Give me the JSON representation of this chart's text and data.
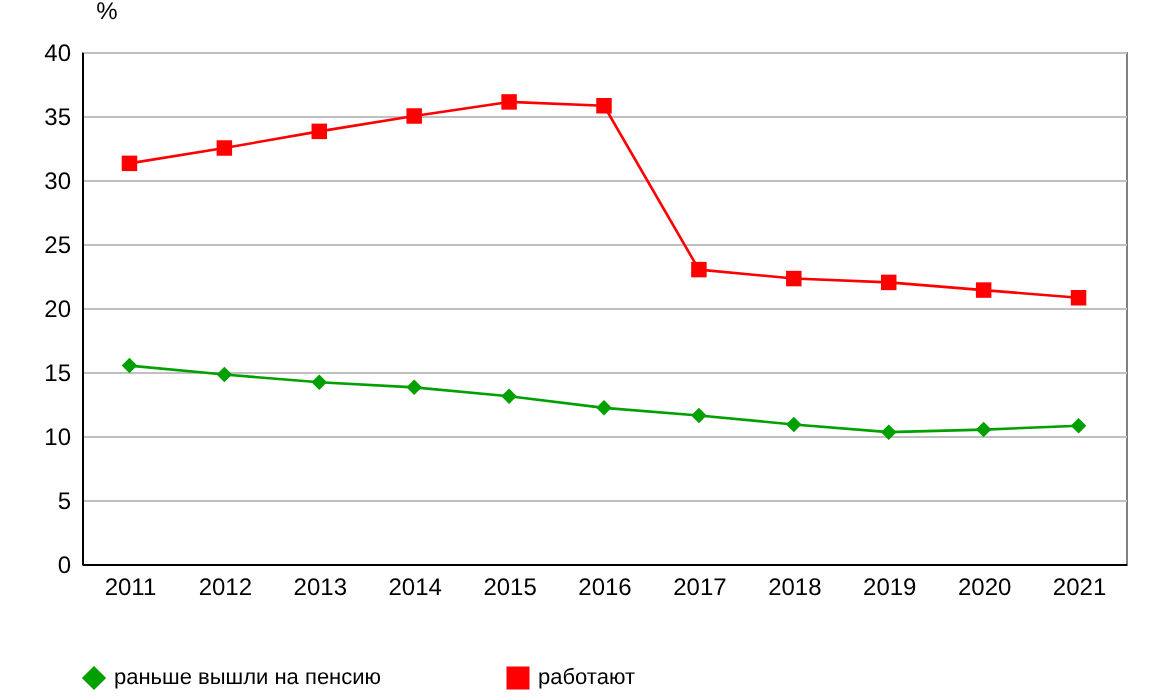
{
  "chart_data": {
    "type": "line",
    "ylabel": "%",
    "categories": [
      "2011",
      "2012",
      "2013",
      "2014",
      "2015",
      "2016",
      "2017",
      "2018",
      "2019",
      "2020",
      "2021"
    ],
    "series": [
      {
        "name": "раньше вышли на пенсию",
        "color": "#00a000",
        "marker": "diamond",
        "values": [
          15.5,
          14.8,
          14.2,
          13.8,
          13.1,
          12.2,
          11.6,
          10.9,
          10.3,
          10.5,
          10.8
        ]
      },
      {
        "name": "работают",
        "color": "#ff0000",
        "marker": "square",
        "values": [
          31.3,
          32.5,
          33.8,
          35,
          36.1,
          35.8,
          23,
          22.3,
          22,
          21.4,
          20.8
        ]
      }
    ],
    "ylim": [
      0,
      40
    ],
    "yticks": [
      0,
      5,
      10,
      15,
      20,
      25,
      30,
      35,
      40
    ],
    "grid": "y",
    "legend": "bottom"
  }
}
